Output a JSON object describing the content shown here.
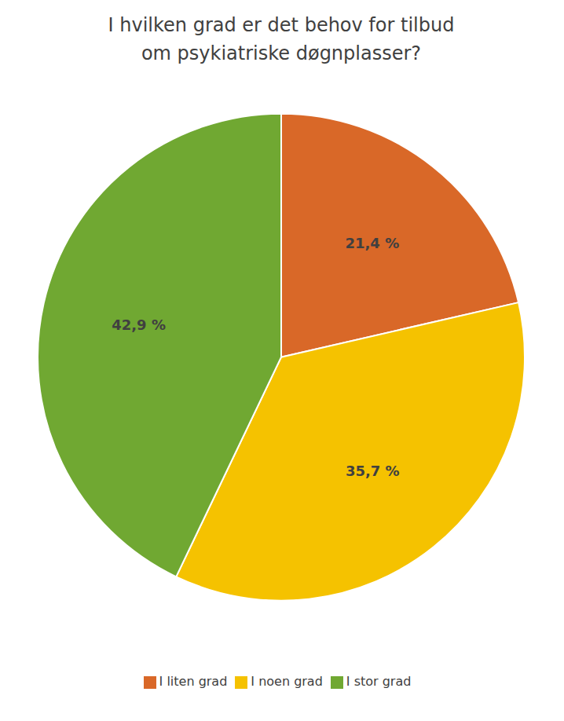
{
  "chart_data": {
    "type": "pie",
    "title": "I hvilken grad er det behov for tilbud\nom psykiatriske døgnplasser?",
    "categories": [
      "I liten grad",
      "I noen grad",
      "I stor grad"
    ],
    "values": [
      21.4,
      35.7,
      42.9
    ],
    "value_labels": [
      "21,4 %",
      "35,7 %",
      "42,9 %"
    ],
    "colors": [
      "#D96828",
      "#F5C200",
      "#70A832"
    ],
    "data_labels": true,
    "legend": "bottom"
  }
}
